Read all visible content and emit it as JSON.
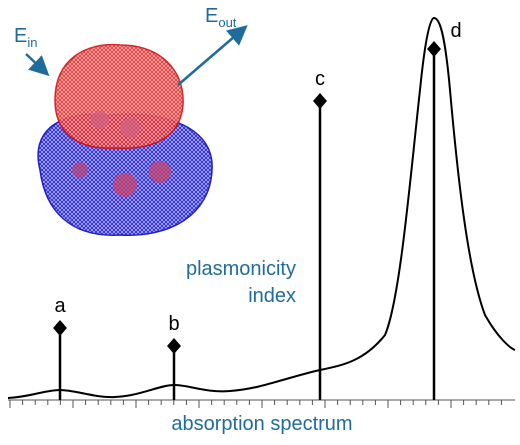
{
  "field_in": {
    "symbol": "E",
    "subscript": "in"
  },
  "field_out": {
    "symbol": "E",
    "subscript": "out"
  },
  "peaks": [
    {
      "label": "a"
    },
    {
      "label": "b"
    },
    {
      "label": "c"
    },
    {
      "label": "d"
    }
  ],
  "y_label": [
    "plasmonicity",
    "index"
  ],
  "x_label": "absorption spectrum"
}
